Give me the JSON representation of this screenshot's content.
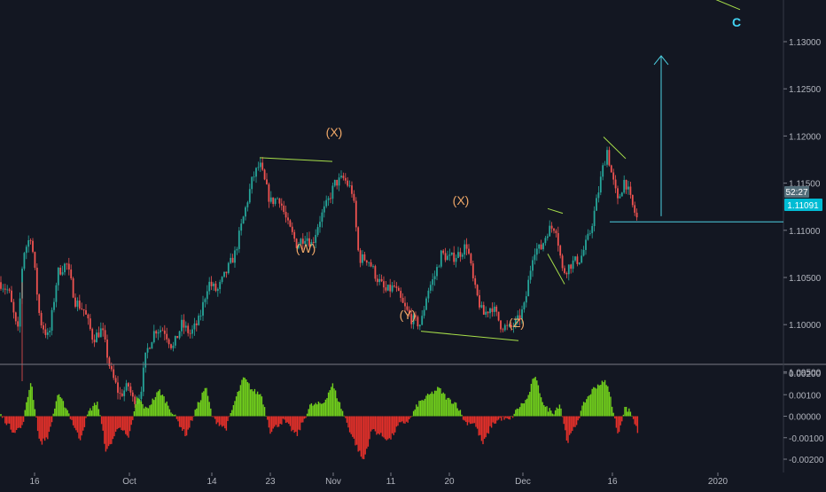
{
  "colors": {
    "background": "#131722",
    "candle_up": "#26a69a",
    "candle_down": "#ef5350",
    "hist_up": "#72d11c",
    "hist_down": "#e5302a",
    "wave_line": "#a8e04a",
    "arrow": "#4dd0e1",
    "wave_label": "#f0a868",
    "wave_c_label": "#42d4f4",
    "axis_text": "#b2b5be",
    "price_tag_bg": "#00bcd4",
    "countdown_bg": "#546e7a"
  },
  "header": {
    "countdown": "52:27"
  },
  "price_tag": "1.11091",
  "wave_labels": {
    "w": "(W)",
    "x1": "(X)",
    "y": "(Y)",
    "x2": "(X)",
    "z": "(Z)",
    "c": "C"
  },
  "chart_data": [
    {
      "type": "candlestick",
      "title": "",
      "x_ticks": [
        "16",
        "Oct",
        "14",
        "23",
        "Nov",
        "11",
        "20",
        "Dec",
        "16",
        "2020"
      ],
      "y_ticks": [
        "1.13000",
        "1.12500",
        "1.12000",
        "1.11500",
        "1.11000",
        "1.10500",
        "1.10000",
        "1.09500"
      ],
      "ylim": [
        1.0915,
        1.1345
      ],
      "last_price": 1.11091,
      "price_path": [
        [
          0,
          1.1045
        ],
        [
          10,
          1.1035
        ],
        [
          20,
          1.099
        ],
        [
          26,
          1.1075
        ],
        [
          35,
          1.1095
        ],
        [
          45,
          1.1005
        ],
        [
          55,
          1.0985
        ],
        [
          65,
          1.1055
        ],
        [
          75,
          1.1065
        ],
        [
          85,
          1.1025
        ],
        [
          95,
          1.1015
        ],
        [
          105,
          1.0985
        ],
        [
          115,
          1.0995
        ],
        [
          125,
          1.095
        ],
        [
          135,
          1.0925
        ],
        [
          145,
          1.0935
        ],
        [
          150,
          1.092
        ],
        [
          158,
          1.0925
        ],
        [
          165,
          1.097
        ],
        [
          175,
          1.0995
        ],
        [
          185,
          1.0995
        ],
        [
          195,
          1.0975
        ],
        [
          205,
          1.1
        ],
        [
          215,
          1.099
        ],
        [
          225,
          1.1005
        ],
        [
          235,
          1.1045
        ],
        [
          245,
          1.1035
        ],
        [
          255,
          1.1055
        ],
        [
          265,
          1.1075
        ],
        [
          275,
          1.1115
        ],
        [
          285,
          1.1155
        ],
        [
          293,
          1.117
        ],
        [
          305,
          1.113
        ],
        [
          315,
          1.1135
        ],
        [
          325,
          1.1105
        ],
        [
          335,
          1.1085
        ],
        [
          345,
          1.1095
        ],
        [
          352,
          1.1085
        ],
        [
          360,
          1.111
        ],
        [
          370,
          1.113
        ],
        [
          378,
          1.115
        ],
        [
          388,
          1.1155
        ],
        [
          398,
          1.114
        ],
        [
          405,
          1.107
        ],
        [
          415,
          1.107
        ],
        [
          425,
          1.105
        ],
        [
          435,
          1.1035
        ],
        [
          445,
          1.104
        ],
        [
          455,
          1.102
        ],
        [
          465,
          1.1005
        ],
        [
          475,
          1.1
        ],
        [
          482,
          1.1035
        ],
        [
          490,
          1.105
        ],
        [
          498,
          1.1075
        ],
        [
          508,
          1.107
        ],
        [
          518,
          1.1075
        ],
        [
          527,
          1.1085
        ],
        [
          535,
          1.104
        ],
        [
          545,
          1.101
        ],
        [
          555,
          1.102
        ],
        [
          565,
          1.1
        ],
        [
          575,
          1.0995
        ],
        [
          585,
          1.1005
        ],
        [
          592,
          1.102
        ],
        [
          597,
          1.105
        ],
        [
          602,
          1.108
        ],
        [
          610,
          1.108
        ],
        [
          618,
          1.11
        ],
        [
          627,
          1.1105
        ],
        [
          635,
          1.1055
        ],
        [
          645,
          1.1065
        ],
        [
          655,
          1.107
        ],
        [
          665,
          1.1095
        ],
        [
          672,
          1.1125
        ],
        [
          680,
          1.1165
        ],
        [
          685,
          1.1185
        ],
        [
          690,
          1.116
        ],
        [
          697,
          1.113
        ],
        [
          705,
          1.1155
        ],
        [
          712,
          1.113
        ],
        [
          720,
          1.1109
        ]
      ],
      "wave_lines": [
        [
          [
            293,
            1.1177
          ],
          [
            375,
            1.1173
          ]
        ],
        [
          [
            475,
            1.0993
          ],
          [
            585,
            1.0983
          ]
        ],
        [
          [
            618,
            1.1123
          ],
          [
            635,
            1.1118
          ]
        ],
        [
          [
            618,
            1.1075
          ],
          [
            637,
            1.1043
          ]
        ],
        [
          [
            681,
            1.1199
          ],
          [
            706,
            1.1176
          ]
        ],
        [
          [
            709,
            1.1383
          ],
          [
            835,
            1.1334
          ]
        ]
      ],
      "projection_arrow": {
        "from": 1.1115,
        "to": 1.1285
      },
      "horizontal_level": 1.1109
    },
    {
      "type": "histogram",
      "title": "",
      "y_ticks": [
        "0.00200",
        "0.00100",
        "0.00000",
        "-0.00100",
        "-0.00200"
      ],
      "ylim": [
        -0.0023,
        0.0023
      ],
      "key_points": [
        [
          0,
          0.0001
        ],
        [
          15,
          -0.0007
        ],
        [
          25,
          -0.0005
        ],
        [
          35,
          0.0017
        ],
        [
          45,
          -0.0013
        ],
        [
          55,
          -0.0009
        ],
        [
          65,
          0.001
        ],
        [
          75,
          0.0004
        ],
        [
          90,
          -0.0011
        ],
        [
          100,
          0.0002
        ],
        [
          110,
          0.0007
        ],
        [
          120,
          -0.0017
        ],
        [
          135,
          -0.0004
        ],
        [
          145,
          -0.0011
        ],
        [
          155,
          0.0009
        ],
        [
          165,
          0.0003
        ],
        [
          180,
          0.0012
        ],
        [
          190,
          0.0005
        ],
        [
          200,
          -0.0002
        ],
        [
          210,
          -0.0009
        ],
        [
          220,
          0.0002
        ],
        [
          232,
          0.0014
        ],
        [
          240,
          -0.0001
        ],
        [
          255,
          -0.0006
        ],
        [
          265,
          0.0007
        ],
        [
          275,
          0.0018
        ],
        [
          285,
          0.0012
        ],
        [
          295,
          0.001
        ],
        [
          305,
          -0.0007
        ],
        [
          320,
          -0.0002
        ],
        [
          335,
          -0.0009
        ],
        [
          350,
          0.0005
        ],
        [
          365,
          0.0006
        ],
        [
          375,
          0.0015
        ],
        [
          385,
          0.0004
        ],
        [
          395,
          -0.0007
        ],
        [
          410,
          -0.0021
        ],
        [
          420,
          -0.0006
        ],
        [
          430,
          -0.0009
        ],
        [
          440,
          -0.0011
        ],
        [
          450,
          -0.0004
        ],
        [
          462,
          -0.0002
        ],
        [
          472,
          0.0006
        ],
        [
          485,
          0.001
        ],
        [
          495,
          0.0013
        ],
        [
          505,
          0.0008
        ],
        [
          515,
          0.0006
        ],
        [
          525,
          -0.0003
        ],
        [
          535,
          -0.0003
        ],
        [
          545,
          -0.0013
        ],
        [
          555,
          -0.0004
        ],
        [
          565,
          -0.0001
        ],
        [
          575,
          -0.0002
        ],
        [
          585,
          0.0004
        ],
        [
          595,
          0.0008
        ],
        [
          603,
          0.0019
        ],
        [
          615,
          0.0004
        ],
        [
          625,
          0.0002
        ],
        [
          632,
          0.0006
        ],
        [
          640,
          -0.0012
        ],
        [
          650,
          -0.0004
        ],
        [
          660,
          0.0007
        ],
        [
          670,
          0.0013
        ],
        [
          676,
          0.0015
        ],
        [
          684,
          0.0016
        ],
        [
          690,
          0.0007
        ],
        [
          697,
          -0.0009
        ],
        [
          705,
          0.0004
        ],
        [
          712,
          0.0002
        ],
        [
          720,
          -0.0008
        ]
      ]
    }
  ]
}
